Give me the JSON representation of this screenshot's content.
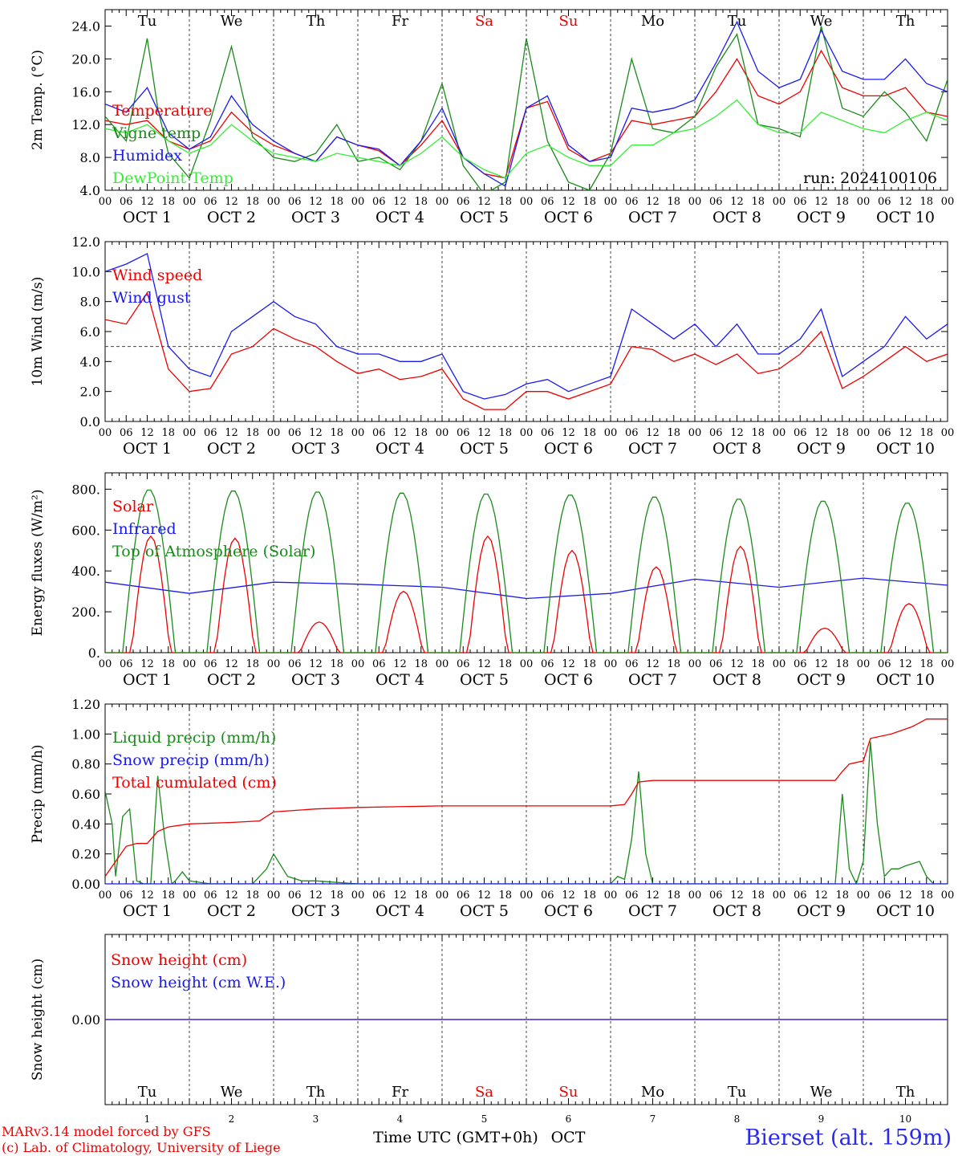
{
  "run_label": "run: 2024100106",
  "station_label": "Bierset (alt. 159m)",
  "credits": {
    "line1": "MARv3.14 model forced by GFS",
    "line2": "(c) Lab. of Climatology, University of Liege"
  },
  "xaxis": {
    "hour_labels": [
      "00",
      "06",
      "12",
      "18"
    ],
    "date_labels": [
      "OCT  1",
      "OCT  2",
      "OCT  3",
      "OCT  4",
      "OCT  5",
      "OCT  6",
      "OCT  7",
      "OCT  8",
      "OCT  9",
      "OCT 10"
    ],
    "day_names": [
      "Tu",
      "We",
      "Th",
      "Fr",
      "Sa",
      "Su",
      "Mo",
      "Tu",
      "We",
      "Th"
    ],
    "weekend_flags": [
      false,
      false,
      false,
      false,
      true,
      true,
      false,
      false,
      false,
      false
    ],
    "bottom_day_numbers": [
      "1",
      "2",
      "3",
      "4",
      "5",
      "6",
      "7",
      "8",
      "9",
      "10"
    ],
    "bottom_title": "Time UTC (GMT+0h)",
    "bottom_month": "OCT"
  },
  "colors": {
    "red": "#ee0000",
    "green": "#1a8a1a",
    "blue": "#1a1aee",
    "lightgreen": "#33ee33",
    "purple": "#8000a0",
    "grid": "#444444"
  },
  "chart_data": [
    {
      "type": "line",
      "ylabel": "2m Temp. (°C)",
      "ylim": [
        4,
        26
      ],
      "y_ticks": [
        4,
        8,
        12,
        16,
        20,
        24
      ],
      "y_tick_labels": [
        "4.0",
        "8.0",
        "12.0",
        "16.0",
        "20.0",
        "24.0"
      ],
      "x_unit": "hours since Oct 1 00 UTC",
      "series": [
        {
          "name": "Temperature",
          "color": "red",
          "x": [
            0,
            6,
            12,
            18,
            24,
            30,
            36,
            42,
            48,
            54,
            60,
            66,
            72,
            78,
            84,
            90,
            96,
            102,
            108,
            114,
            120,
            126,
            132,
            138,
            144,
            150,
            156,
            162,
            168,
            174,
            180,
            186,
            192,
            198,
            204,
            210,
            216,
            222,
            228,
            234,
            240
          ],
          "y": [
            12.5,
            12.0,
            12.5,
            10.0,
            9.0,
            10.0,
            13.5,
            11.0,
            9.5,
            8.5,
            7.5,
            10.5,
            9.5,
            8.8,
            7.0,
            9.5,
            12.5,
            8.0,
            6.0,
            5.5,
            14.0,
            14.8,
            9.0,
            7.5,
            8.5,
            12.5,
            12.0,
            12.5,
            13.0,
            16.0,
            20.0,
            15.5,
            14.5,
            16.0,
            21.0,
            16.5,
            15.5,
            15.5,
            16.5,
            13.5,
            13.0
          ]
        },
        {
          "name": "Vigne temp",
          "color": "green",
          "x": [
            0,
            6,
            12,
            15,
            18,
            24,
            30,
            36,
            42,
            48,
            54,
            60,
            66,
            72,
            78,
            84,
            90,
            96,
            102,
            108,
            114,
            120,
            126,
            132,
            138,
            144,
            150,
            156,
            162,
            168,
            174,
            180,
            186,
            192,
            198,
            204,
            210,
            216,
            222,
            228,
            234,
            240
          ],
          "y": [
            13.0,
            10.0,
            22.5,
            14.0,
            8.5,
            5.5,
            12.5,
            21.5,
            10.5,
            8.0,
            7.5,
            8.5,
            12.0,
            7.5,
            8.0,
            6.5,
            10.0,
            17.0,
            7.0,
            3.5,
            5.0,
            22.5,
            10.0,
            5.0,
            4.0,
            8.5,
            20.0,
            11.5,
            11.0,
            13.0,
            19.0,
            23.0,
            12.0,
            11.5,
            10.5,
            24.0,
            14.0,
            13.0,
            16.0,
            13.5,
            10.0,
            17.5
          ]
        },
        {
          "name": "Humidex",
          "color": "blue",
          "x": [
            0,
            6,
            12,
            18,
            24,
            30,
            36,
            42,
            48,
            54,
            60,
            66,
            72,
            78,
            84,
            90,
            96,
            102,
            108,
            114,
            120,
            126,
            132,
            138,
            144,
            150,
            156,
            162,
            168,
            174,
            180,
            186,
            192,
            198,
            204,
            210,
            216,
            222,
            228,
            234,
            240
          ],
          "y": [
            14.5,
            13.5,
            16.5,
            11.0,
            9.0,
            10.5,
            15.5,
            12.0,
            10.0,
            8.5,
            7.5,
            10.5,
            9.5,
            9.0,
            7.0,
            10.0,
            14.0,
            8.0,
            6.0,
            4.5,
            14.0,
            15.5,
            9.5,
            7.5,
            8.0,
            14.0,
            13.5,
            14.0,
            15.0,
            19.5,
            24.5,
            18.5,
            16.5,
            17.5,
            23.5,
            18.5,
            17.5,
            17.5,
            20.0,
            17.0,
            16.0
          ]
        },
        {
          "name": "DewPoint Temp",
          "color": "lightgreen",
          "x": [
            0,
            6,
            12,
            18,
            24,
            30,
            36,
            42,
            48,
            54,
            60,
            66,
            72,
            78,
            84,
            90,
            96,
            102,
            108,
            114,
            120,
            126,
            132,
            138,
            144,
            150,
            156,
            162,
            168,
            174,
            180,
            186,
            192,
            198,
            204,
            210,
            216,
            222,
            228,
            234,
            240
          ],
          "y": [
            11.5,
            11.0,
            12.0,
            10.0,
            8.5,
            9.5,
            12.0,
            10.0,
            8.5,
            8.0,
            7.5,
            8.5,
            8.0,
            7.5,
            7.0,
            8.5,
            10.5,
            8.0,
            6.5,
            5.5,
            8.5,
            9.5,
            8.0,
            7.0,
            7.0,
            9.5,
            9.5,
            11.0,
            11.5,
            13.0,
            15.0,
            12.0,
            11.0,
            11.0,
            13.5,
            12.5,
            11.5,
            11.0,
            12.5,
            13.5,
            12.5
          ]
        }
      ]
    },
    {
      "type": "line",
      "ylabel": "10m Wind (m/s)",
      "ylim": [
        0,
        12
      ],
      "y_ticks": [
        0,
        2,
        4,
        6,
        8,
        10,
        12
      ],
      "y_tick_labels": [
        "0.0",
        "2.0",
        "4.0",
        "6.0",
        "8.0",
        "10.0",
        "12.0"
      ],
      "reference_line": 5,
      "series": [
        {
          "name": "Wind speed",
          "color": "red",
          "x": [
            0,
            6,
            12,
            18,
            24,
            30,
            36,
            42,
            48,
            54,
            60,
            66,
            72,
            78,
            84,
            90,
            96,
            102,
            108,
            114,
            120,
            126,
            132,
            138,
            144,
            150,
            156,
            162,
            168,
            174,
            180,
            186,
            192,
            198,
            204,
            210,
            216,
            222,
            228,
            234,
            240
          ],
          "y": [
            6.8,
            6.5,
            8.6,
            3.5,
            2.0,
            2.2,
            4.5,
            5.0,
            6.2,
            5.5,
            5.0,
            4.0,
            3.2,
            3.5,
            2.8,
            3.0,
            3.5,
            1.5,
            0.8,
            0.8,
            2.0,
            2.0,
            1.5,
            2.0,
            2.5,
            5.0,
            4.8,
            4.0,
            4.5,
            3.8,
            4.5,
            3.2,
            3.5,
            4.5,
            6.0,
            2.2,
            3.0,
            4.0,
            5.0,
            4.0,
            4.5
          ]
        },
        {
          "name": "Wind gust",
          "color": "blue",
          "x": [
            0,
            6,
            12,
            18,
            24,
            30,
            36,
            42,
            48,
            54,
            60,
            66,
            72,
            78,
            84,
            90,
            96,
            102,
            108,
            114,
            120,
            126,
            132,
            138,
            144,
            150,
            156,
            162,
            168,
            174,
            180,
            186,
            192,
            198,
            204,
            210,
            216,
            222,
            228,
            234,
            240
          ],
          "y": [
            10.0,
            10.5,
            11.2,
            5.0,
            3.5,
            3.0,
            6.0,
            7.0,
            8.0,
            7.0,
            6.5,
            5.0,
            4.5,
            4.5,
            4.0,
            4.0,
            4.5,
            2.0,
            1.5,
            1.8,
            2.5,
            2.8,
            2.0,
            2.5,
            3.0,
            7.5,
            6.5,
            5.5,
            6.5,
            5.0,
            6.5,
            4.5,
            4.5,
            5.5,
            7.5,
            3.0,
            4.0,
            5.0,
            7.0,
            5.5,
            6.5
          ]
        }
      ]
    },
    {
      "type": "line",
      "ylabel": "Energy fluxes (W/m²)",
      "ylim": [
        0,
        880
      ],
      "y_ticks": [
        0,
        200,
        400,
        600,
        800
      ],
      "y_tick_labels": [
        "0.",
        "200.",
        "400.",
        "600.",
        "800."
      ],
      "series": [
        {
          "name": "Solar",
          "color": "red",
          "peaks_hour": [
            13,
            13,
            13,
            13,
            13,
            13,
            13,
            13,
            13,
            13
          ],
          "peaks_value": [
            570,
            560,
            150,
            300,
            570,
            500,
            420,
            520,
            120,
            240
          ]
        },
        {
          "name": "Infrared",
          "color": "blue",
          "x": [
            0,
            24,
            48,
            72,
            96,
            120,
            144,
            168,
            192,
            216,
            240
          ],
          "y": [
            345,
            290,
            345,
            335,
            320,
            265,
            290,
            360,
            320,
            365,
            330
          ]
        },
        {
          "name": "Top of Atmosphere (Solar)",
          "color": "green",
          "peaks_value": [
            800,
            795,
            790,
            785,
            780,
            775,
            765,
            755,
            745,
            735
          ]
        }
      ]
    },
    {
      "type": "line",
      "ylabel": "Precip (mm/h)",
      "ylim": [
        0,
        1.2
      ],
      "y_ticks": [
        0,
        0.2,
        0.4,
        0.6,
        0.8,
        1.0,
        1.2
      ],
      "y_tick_labels": [
        "0.00",
        "0.20",
        "0.40",
        "0.60",
        "0.80",
        "1.00",
        "1.20"
      ],
      "series": [
        {
          "name": "Liquid precip (mm/h)",
          "color": "green",
          "x": [
            0,
            2,
            3,
            5,
            7,
            9,
            11,
            13,
            15,
            17,
            19,
            20,
            22,
            24,
            30,
            36,
            42,
            46,
            48,
            52,
            56,
            60,
            72,
            96,
            120,
            144,
            146,
            148,
            150,
            152,
            154,
            156,
            160,
            208,
            210,
            212,
            214,
            216,
            218,
            220,
            222,
            224,
            226,
            228,
            232,
            234,
            236,
            240
          ],
          "y": [
            0.62,
            0.4,
            0.05,
            0.45,
            0.5,
            0.02,
            0.0,
            0.0,
            0.72,
            0.3,
            0.0,
            0.02,
            0.08,
            0.02,
            0.0,
            0.0,
            0.0,
            0.1,
            0.2,
            0.05,
            0.02,
            0.02,
            0.0,
            0.0,
            0.0,
            0.0,
            0.05,
            0.03,
            0.3,
            0.75,
            0.2,
            0.0,
            0.0,
            0.0,
            0.6,
            0.1,
            0.0,
            0.15,
            0.95,
            0.4,
            0.05,
            0.1,
            0.1,
            0.12,
            0.15,
            0.05,
            0.0,
            0.0
          ]
        },
        {
          "name": "Snow precip (mm/h)",
          "color": "blue",
          "x": [
            0,
            240
          ],
          "y": [
            0,
            0
          ]
        },
        {
          "name": "Total cumulated (cm)",
          "color": "red",
          "x": [
            0,
            3,
            6,
            9,
            12,
            15,
            18,
            24,
            36,
            44,
            48,
            60,
            72,
            96,
            120,
            144,
            148,
            150,
            152,
            156,
            160,
            200,
            208,
            210,
            212,
            216,
            218,
            224,
            230,
            234,
            240
          ],
          "y": [
            0.05,
            0.15,
            0.25,
            0.27,
            0.27,
            0.35,
            0.38,
            0.4,
            0.41,
            0.42,
            0.48,
            0.5,
            0.51,
            0.52,
            0.52,
            0.52,
            0.53,
            0.6,
            0.68,
            0.69,
            0.69,
            0.69,
            0.69,
            0.75,
            0.8,
            0.82,
            0.97,
            1.0,
            1.05,
            1.1,
            1.1
          ]
        }
      ]
    },
    {
      "type": "line",
      "ylabel": "Snow height (cm)",
      "ylim": [
        -1,
        1
      ],
      "y_ticks": [
        0
      ],
      "y_tick_labels": [
        "0.00"
      ],
      "series": [
        {
          "name": "Snow height (cm)",
          "color": "red",
          "x": [
            0,
            240
          ],
          "y": [
            0,
            0
          ]
        },
        {
          "name": "Snow height (cm W.E.)",
          "color": "blue",
          "x": [
            0,
            240
          ],
          "y": [
            0,
            0
          ]
        }
      ]
    }
  ]
}
